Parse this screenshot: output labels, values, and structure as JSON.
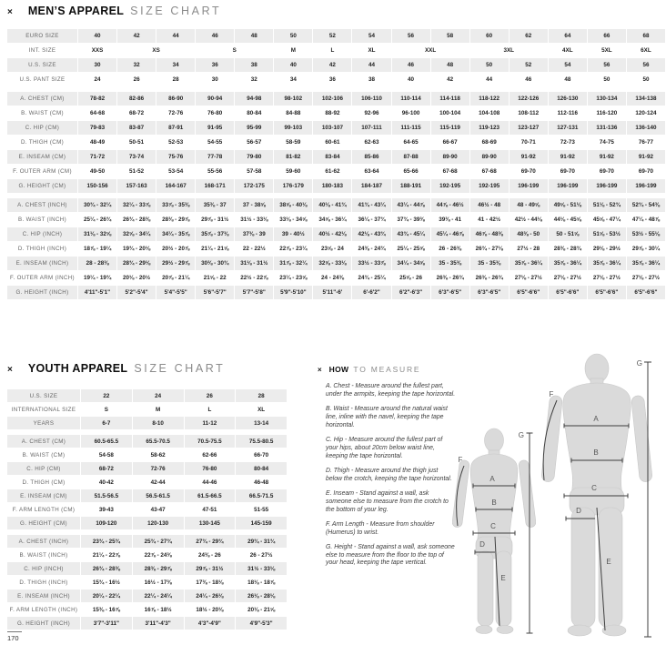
{
  "page": {
    "number": "170"
  },
  "mens": {
    "marker": "×",
    "title_bold": "MEN’S APPAREL",
    "title_light": "SIZE CHART",
    "table": {
      "groups": [
        {
          "rows": [
            {
              "label": "EURO SIZE",
              "cells": [
                "40",
                "42",
                "44",
                "46",
                "48",
                "50",
                "52",
                "54",
                "56",
                "58",
                "60",
                "62",
                "64",
                "66",
                "68"
              ]
            },
            {
              "label": "INT. SIZE",
              "cells": [
                {
                  "v": "XXS",
                  "span": 1
                },
                {
                  "v": "XS",
                  "span": 2
                },
                {
                  "v": "S",
                  "span": 2
                },
                {
                  "v": "M",
                  "span": 1
                },
                {
                  "v": "L",
                  "span": 1
                },
                {
                  "v": "XL",
                  "span": 1
                },
                {
                  "v": "XXL",
                  "span": 2
                },
                {
                  "v": "3XL",
                  "span": 2
                },
                {
                  "v": "4XL",
                  "span": 1
                },
                {
                  "v": "5XL",
                  "span": 1
                },
                {
                  "v": "6XL",
                  "span": 1
                }
              ]
            },
            {
              "label": "U.S. SIZE",
              "cells": [
                "30",
                "32",
                "34",
                "36",
                "38",
                "40",
                "42",
                "44",
                "46",
                "48",
                "50",
                "52",
                "54",
                "56",
                "56"
              ]
            },
            {
              "label": "U.S. PANT SIZE",
              "cells": [
                "24",
                "26",
                "28",
                "30",
                "32",
                "34",
                "36",
                "38",
                "40",
                "42",
                "44",
                "46",
                "48",
                "50",
                "50"
              ]
            }
          ]
        },
        {
          "rows": [
            {
              "label": "A. CHEST (cm)",
              "cells": [
                "78-82",
                "82-86",
                "86-90",
                "90-94",
                "94-98",
                "98-102",
                "102-106",
                "106-110",
                "110-114",
                "114-118",
                "118-122",
                "122-126",
                "126-130",
                "130-134",
                "134-138"
              ]
            },
            {
              "label": "B. WAIST (cm)",
              "cells": [
                "64-68",
                "68-72",
                "72-76",
                "76-80",
                "80-84",
                "84-88",
                "88-92",
                "92-96",
                "96-100",
                "100-104",
                "104-108",
                "108-112",
                "112-116",
                "116-120",
                "120-124"
              ]
            },
            {
              "label": "C. HIP (cm)",
              "cells": [
                "79-83",
                "83-87",
                "87-91",
                "91-95",
                "95-99",
                "99-103",
                "103-107",
                "107-111",
                "111-115",
                "115-119",
                "119-123",
                "123-127",
                "127-131",
                "131-136",
                "136-140"
              ]
            },
            {
              "label": "D. THIGH (cm)",
              "cells": [
                "48-49",
                "50-51",
                "52-53",
                "54-55",
                "56-57",
                "58-59",
                "60-61",
                "62-63",
                "64-65",
                "66-67",
                "68-69",
                "70-71",
                "72-73",
                "74-75",
                "76-77"
              ]
            },
            {
              "label": "E. INSEAM (cm)",
              "cells": [
                "71-72",
                "73-74",
                "75-76",
                "77-78",
                "79-80",
                "81-82",
                "83-84",
                "85-86",
                "87-88",
                "89-90",
                "89-90",
                "91-92",
                "91-92",
                "91-92",
                "91-92"
              ]
            },
            {
              "label": "F. OUTER ARM (cm)",
              "cells": [
                "49-50",
                "51-52",
                "53-54",
                "55-56",
                "57-58",
                "59-60",
                "61-62",
                "63-64",
                "65-66",
                "67-68",
                "67-68",
                "69-70",
                "69-70",
                "69-70",
                "69-70"
              ]
            },
            {
              "label": "G. HEIGHT (cm)",
              "cells": [
                "150-156",
                "157-163",
                "164-167",
                "168-171",
                "172-175",
                "176-179",
                "180-183",
                "184-187",
                "188-191",
                "192-195",
                "192-195",
                "196-199",
                "196-199",
                "196-199",
                "196-199"
              ]
            }
          ]
        },
        {
          "rows": [
            {
              "label": "A. CHEST (inch)",
              "cells": [
                "30¾ - 32¼",
                "32¼ - 33⅞",
                "33⅞ - 35⅜",
                "35⅜ - 37",
                "37 - 38⅝",
                "38⅝ - 40⅛",
                "40⅛ - 41¾",
                "41¾ - 43¼",
                "43¼ - 44⅞",
                "44⅞ - 46½",
                "46½ - 48",
                "48 - 49⅝",
                "49⅝ - 51⅛",
                "51⅛ - 52¾",
                "52¾ - 54⅜"
              ]
            },
            {
              "label": "B. WAIST (inch)",
              "cells": [
                "25¼ - 26¾",
                "26¾ - 28⅜",
                "28⅜ - 29⅞",
                "29⅞ - 31½",
                "31½ - 33⅛",
                "33⅛ - 34⅝",
                "34⅝ - 36¼",
                "36¼ - 37¾",
                "37¾ - 39⅜",
                "39⅜ - 41",
                "41 - 42½",
                "42½ - 44⅛",
                "44⅛ - 45⅝",
                "45⅝ - 47¼",
                "47¼ - 48⅞"
              ]
            },
            {
              "label": "C. HIP (inch)",
              "cells": [
                "31⅛ - 32⅝",
                "32⅝ - 34¼",
                "34¼ - 35⅞",
                "35⅞ - 37⅜",
                "37⅜ - 39",
                "39 - 40½",
                "40½ - 42⅛",
                "42⅛ - 43¾",
                "43¾ - 45¼",
                "45¼ - 46⅞",
                "46⅞ - 48⅜",
                "48⅜ - 50",
                "50 - 51⅝",
                "51⅝ - 53½",
                "53½ - 55⅛"
              ]
            },
            {
              "label": "D. THIGH (inch)",
              "cells": [
                "18⅞ - 19¼",
                "19¾ - 20⅛",
                "20½ - 20⅞",
                "21¼ - 21⅝",
                "22 - 22½",
                "22⅞ - 23¼",
                "23⅝ - 24",
                "24⅜ - 24¾",
                "25¼ - 25⅝",
                "26 - 26⅜",
                "26¾ - 27⅛",
                "27½ - 28",
                "28⅜ - 28¾",
                "29⅛ - 29½",
                "29⅞ - 30¼"
              ]
            },
            {
              "label": "E. INSEAM (inch)",
              "cells": [
                "28 - 28⅜",
                "28¾ - 29⅛",
                "29½ - 29⅞",
                "30⅜ - 30¾",
                "31⅛ - 31½",
                "31⅞ - 32¼",
                "32⅝ - 33⅛",
                "33½ - 33⅞",
                "34¼ - 34⅝",
                "35 - 35⅜",
                "35 - 35⅜",
                "35⅞ - 36¼",
                "35⅞ - 36¼",
                "35⅞ - 36¼",
                "35⅞ - 36¼"
              ]
            },
            {
              "label": "F. OUTER ARM (inch)",
              "cells": [
                "19¼ - 19¾",
                "20⅛ - 20½",
                "20⅞ - 21¼",
                "21⅝ - 22",
                "22½ - 22⅞",
                "23¼ - 23⅝",
                "24 - 24⅜",
                "24¾ - 25¼",
                "25⅝ - 26",
                "26⅜ - 26¾",
                "26⅜ - 26¾",
                "27⅛ - 27½",
                "27⅛ - 27½",
                "27⅛ - 27½",
                "27⅛ - 27½"
              ]
            },
            {
              "label": "G. HEIGHT (inch)",
              "cells": [
                "4'11\"-5'1\"",
                "5'2\"-5'4\"",
                "5'4\"-5'5\"",
                "5'6\"-5'7\"",
                "5'7\"-5'8\"",
                "5'9\"-5'10\"",
                "5'11\"-6'",
                "6'-6'2\"",
                "6'2\"-6'3\"",
                "6'3\"-6'5\"",
                "6'3\"-6'5\"",
                "6'5\"-6'6\"",
                "6'5\"-6'6\"",
                "6'5\"-6'6\"",
                "6'5\"-6'6\""
              ]
            }
          ]
        }
      ]
    }
  },
  "youth": {
    "marker": "×",
    "title_bold": "YOUTH APPAREL",
    "title_light": "SIZE CHART",
    "table": {
      "groups": [
        {
          "rows": [
            {
              "label": "U.S. SIZE",
              "cells": [
                "22",
                "24",
                "26",
                "28"
              ]
            },
            {
              "label": "INTERNATIONAL SIZE",
              "cells": [
                "S",
                "M",
                "L",
                "XL"
              ]
            },
            {
              "label": "YEARS",
              "cells": [
                "6-7",
                "8-10",
                "11-12",
                "13-14"
              ]
            }
          ]
        },
        {
          "rows": [
            {
              "label": "A. CHEST (cm)",
              "cells": [
                "60.5-65.5",
                "65.5-70.5",
                "70.5-75.5",
                "75.5-80.5"
              ]
            },
            {
              "label": "B. WAIST (cm)",
              "cells": [
                "54-58",
                "58-62",
                "62-66",
                "66-70"
              ]
            },
            {
              "label": "C. HIP (cm)",
              "cells": [
                "68-72",
                "72-76",
                "76-80",
                "80-84"
              ]
            },
            {
              "label": "D. THIGH (cm)",
              "cells": [
                "40-42",
                "42-44",
                "44-46",
                "46-48"
              ]
            },
            {
              "label": "E. INSEAM (cm)",
              "cells": [
                "51.5-56.5",
                "56.5-61.5",
                "61.5-66.5",
                "66.5-71.5"
              ]
            },
            {
              "label": "F. ARM LENGTH (cm)",
              "cells": [
                "39-43",
                "43-47",
                "47-51",
                "51-55"
              ]
            },
            {
              "label": "G. HEIGHT (cm)",
              "cells": [
                "109-120",
                "120-130",
                "130-145",
                "145-159"
              ]
            }
          ]
        },
        {
          "rows": [
            {
              "label": "A. CHEST (inch)",
              "cells": [
                "23¾ - 25¾",
                "25¾ - 27¾",
                "27¾ - 29¾",
                "29¾ - 31¾"
              ]
            },
            {
              "label": "B. WAIST (inch)",
              "cells": [
                "21¼ - 22⅞",
                "22⅞ - 24⅜",
                "24⅜ - 26",
                "26 - 27½"
              ]
            },
            {
              "label": "C. HIP (inch)",
              "cells": [
                "26¾ - 28⅜",
                "28⅜ - 29⅞",
                "29⅞ - 31½",
                "31½ - 33⅛"
              ]
            },
            {
              "label": "D. THIGH (inch)",
              "cells": [
                "15¾ - 16½",
                "16½ - 17⅜",
                "17⅜ - 18⅛",
                "18⅛ - 18⅞"
              ]
            },
            {
              "label": "E. INSEAM (inch)",
              "cells": [
                "20¼ - 22¼",
                "22¼ - 24¼",
                "24¼ - 26⅛",
                "26⅛ - 28⅛"
              ]
            },
            {
              "label": "F. ARM LENGTH (inch)",
              "cells": [
                "15⅜ - 16⅞",
                "16⅞ - 18½",
                "18½ - 20⅛",
                "20⅛ - 21⅝"
              ]
            },
            {
              "label": "G. HEIGHT (inch)",
              "cells": [
                "3'7\"-3'11\"",
                "3'11\"-4'3\"",
                "4'3\"-4'9\"",
                "4'9\"-5'3\""
              ]
            }
          ]
        }
      ]
    }
  },
  "how_to": {
    "marker": "×",
    "title_bold": "HOW",
    "title_light": "TO MEASURE",
    "items": [
      "A. Chest - Measure around the fullest part, under the armpits, keeping the tape horizontal.",
      "B. Waist - Measure around the natural waist line, inline with the navel, keeping the tape horizontal.",
      "C. Hip - Measure around the fullest part of your hips, about 20cm below waist line, keeping the tape horizontal.",
      "D. Thigh - Measure around the thigh just below the crotch, keeping the tape horizontal.",
      "E. Inseam - Stand against a wall, ask someone else to measure from the crotch to the bottom of your leg.",
      "F. Arm Length  - Measure from shoulder (Humerus) to wrist.",
      "G. Height  - Stand against a wall, ask someone else to measure from the floor to the top of your head, keeping the tape vertical."
    ]
  },
  "figures": {
    "labels": [
      "A",
      "B",
      "C",
      "D",
      "E",
      "F",
      "G"
    ]
  }
}
